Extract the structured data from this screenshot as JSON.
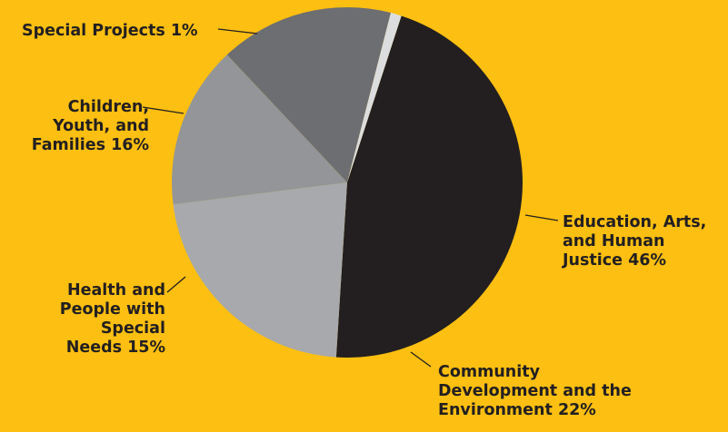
{
  "background_color": "#fdbf11",
  "chart_data": {
    "type": "pie",
    "title": "",
    "slices": [
      {
        "label": "Education, Arts,\nand Human\nJustice 46%",
        "value": 46,
        "color": "#231f20"
      },
      {
        "label": "Community\nDevelopment and the\nEnvironment 22%",
        "value": 22,
        "color": "#a7a9ac"
      },
      {
        "label": "Health and\nPeople with\nSpecial\nNeeds 15%",
        "value": 15,
        "color": "#939598"
      },
      {
        "label": "Children,\nYouth, and\nFamilies 16%",
        "value": 16,
        "color": "#6d6e71"
      },
      {
        "label": "Special Projects 1%",
        "value": 1,
        "color": "#dcddde"
      }
    ]
  }
}
